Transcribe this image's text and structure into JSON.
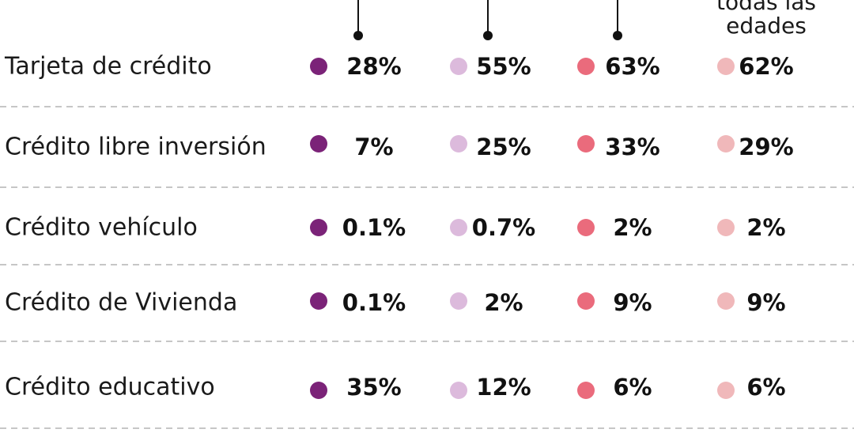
{
  "chart_data": {
    "type": "table",
    "columns": [
      {
        "name": "",
        "color": "#7b2378"
      },
      {
        "name": "",
        "color": "#dcbadc"
      },
      {
        "name": "",
        "color": "#ea6b7c"
      },
      {
        "name": "todas las edades",
        "color": "#f0b8ba"
      }
    ],
    "rows": [
      {
        "label": "Tarjeta de crédito",
        "values": [
          28,
          55,
          63,
          62
        ],
        "display": [
          "28%",
          "55%",
          "63%",
          "62%"
        ]
      },
      {
        "label": "Crédito libre inversión",
        "values": [
          7,
          25,
          33,
          29
        ],
        "display": [
          "7%",
          "25%",
          "33%",
          "29%"
        ]
      },
      {
        "label": "Crédito vehículo",
        "values": [
          0.1,
          0.7,
          2,
          2
        ],
        "display": [
          "0.1%",
          "0.7%",
          "2%",
          "2%"
        ]
      },
      {
        "label": "Crédito de Vivienda",
        "values": [
          0.1,
          2,
          9,
          9
        ],
        "display": [
          "0.1%",
          "2%",
          "9%",
          "9%"
        ]
      },
      {
        "label": "Crédito educativo",
        "values": [
          35,
          12,
          6,
          6
        ],
        "display": [
          "35%",
          "12%",
          "6%",
          "6%"
        ]
      }
    ],
    "unit": "%"
  }
}
